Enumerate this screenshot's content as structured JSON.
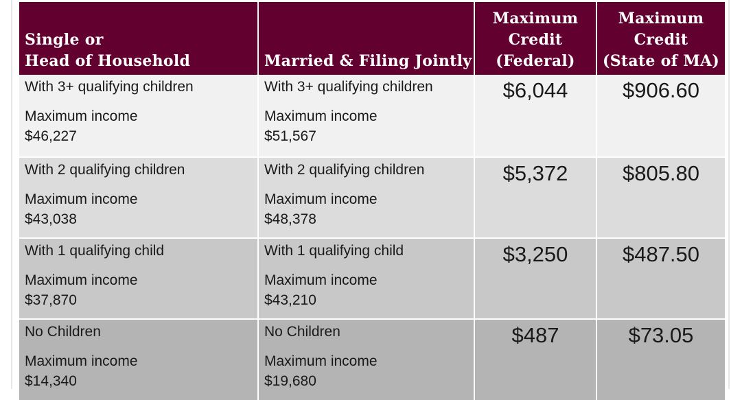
{
  "headers": {
    "single": [
      "Single or",
      "Head of Household"
    ],
    "married": "Married & Filing Jointly",
    "federal": [
      "Maximum",
      "Credit",
      "(Federal)"
    ],
    "state": [
      "Maximum",
      "Credit",
      "(State of MA)"
    ]
  },
  "rows": [
    {
      "single": {
        "condition": "With 3+ qualifying children",
        "income_label": "Maximum income",
        "income": "$46,227"
      },
      "married": {
        "condition": "With 3+ qualifying children",
        "income_label": "Maximum income",
        "income": "$51,567"
      },
      "federal": "$6,044",
      "state": "$906.60"
    },
    {
      "single": {
        "condition": "With 2 qualifying children",
        "income_label": "Maximum income",
        "income": "$43,038"
      },
      "married": {
        "condition": "With 2 qualifying children",
        "income_label": "Maximum income",
        "income": "$48,378"
      },
      "federal": "$5,372",
      "state": "$805.80"
    },
    {
      "single": {
        "condition": "With 1 qualifying child",
        "income_label": "Maximum income",
        "income": "$37,870"
      },
      "married": {
        "condition": "With 1 qualifying child",
        "income_label": "Maximum income",
        "income": "$43,210"
      },
      "federal": "$3,250",
      "state": "$487.50"
    },
    {
      "single": {
        "condition": "No Children",
        "income_label": "Maximum income",
        "income": "$14,340"
      },
      "married": {
        "condition": "No Children",
        "income_label": "Maximum income",
        "income": "$19,680"
      },
      "federal": "$487",
      "state": "$73.05"
    }
  ],
  "colors": {
    "header_bg": "#620030",
    "header_text": "#ffffff",
    "row_bgs": [
      "#f1f1f1",
      "#dcdcdc",
      "#c8c8c8",
      "#b4b4b4"
    ]
  }
}
